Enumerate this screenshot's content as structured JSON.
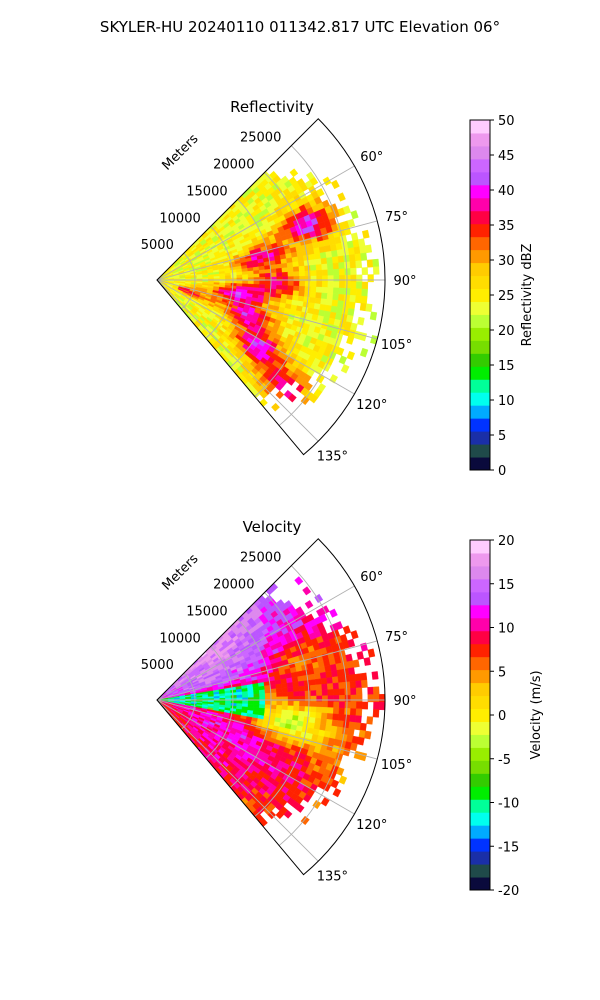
{
  "figure": {
    "suptitle": "SKYLER-HU  20240110  011342.817 UTC Elevation 06°"
  },
  "colors": {
    "reflectivity_scale": [
      "#0a0a3c",
      "#1f4a4a",
      "#1a2fa8",
      "#0033ff",
      "#00aaff",
      "#00ffee",
      "#00ff99",
      "#00ee00",
      "#33cc00",
      "#77dd00",
      "#99ee00",
      "#bbff33",
      "#eeff33",
      "#ffee00",
      "#ffdd00",
      "#ffcc00",
      "#ff9900",
      "#ff6600",
      "#ff2200",
      "#ff0044",
      "#ff00aa",
      "#ff00ff",
      "#bb55ff",
      "#cc66ff",
      "#dd88ee",
      "#ee99ee",
      "#ffccff"
    ],
    "velocity_scale": [
      "#0a0a3c",
      "#1f4a4a",
      "#1a2fa8",
      "#0033ff",
      "#00aaff",
      "#00ffee",
      "#00ff99",
      "#00ee00",
      "#33cc00",
      "#77dd00",
      "#99ee00",
      "#bbff33",
      "#eeff33",
      "#ffee00",
      "#ffdd00",
      "#ffcc00",
      "#ff9900",
      "#ff6600",
      "#ff2200",
      "#ff0044",
      "#ff00aa",
      "#ff00ff",
      "#bb55ff",
      "#cc66ff",
      "#dd88ee",
      "#ee99ee",
      "#ffccff"
    ]
  },
  "chart_data": [
    {
      "type": "heatmap",
      "projection": "polar-sector",
      "title": "Reflectivity",
      "radial_label": "Meters",
      "radial_ticks": [
        "5000",
        "10000",
        "15000",
        "20000",
        "25000"
      ],
      "radial_tick_values": [
        5000,
        10000,
        15000,
        20000,
        25000
      ],
      "r_max": 30000,
      "angle_ticks": [
        "60°",
        "75°",
        "90°",
        "105°",
        "120°",
        "135°"
      ],
      "angle_tick_values": [
        60,
        75,
        90,
        105,
        120,
        135
      ],
      "theta_min": 45,
      "theta_max": 140,
      "grid": true,
      "colorbar": {
        "label": "Reflectivity dBZ",
        "ticks": [
          "0",
          "5",
          "10",
          "15",
          "20",
          "25",
          "30",
          "35",
          "40",
          "45",
          "50"
        ],
        "range": [
          0,
          50
        ]
      },
      "features": [
        {
          "theta": 70,
          "r": 21000,
          "value": 40
        },
        {
          "theta": 78,
          "r": 14000,
          "value": 38
        },
        {
          "theta": 92,
          "r": 16000,
          "value": 36
        },
        {
          "theta": 100,
          "r": 11000,
          "value": 40
        },
        {
          "theta": 112,
          "r": 13000,
          "value": 38
        },
        {
          "theta": 124,
          "r": 16000,
          "value": 40
        },
        {
          "theta": 130,
          "r": 22000,
          "value": 37
        },
        {
          "theta": 110,
          "r": 4000,
          "value": 36
        }
      ]
    },
    {
      "type": "heatmap",
      "projection": "polar-sector",
      "title": "Velocity",
      "radial_label": "Meters",
      "radial_ticks": [
        "5000",
        "10000",
        "15000",
        "20000",
        "25000"
      ],
      "radial_tick_values": [
        5000,
        10000,
        15000,
        20000,
        25000
      ],
      "r_max": 30000,
      "angle_ticks": [
        "60°",
        "75°",
        "90°",
        "105°",
        "120°",
        "135°"
      ],
      "angle_tick_values": [
        60,
        75,
        90,
        105,
        120,
        135
      ],
      "theta_min": 45,
      "theta_max": 140,
      "grid": true,
      "colorbar": {
        "label": "Velocity (m/s)",
        "ticks": [
          "20",
          "15",
          "10",
          "5",
          "0",
          "-5",
          "-10",
          "-15",
          "-20"
        ],
        "range": [
          -20,
          20
        ]
      },
      "features": [
        {
          "theta": 60,
          "r": 22000,
          "value": 12
        },
        {
          "theta": 75,
          "r": 20000,
          "value": 2
        },
        {
          "theta": 90,
          "r": 10000,
          "value": -14
        },
        {
          "theta": 100,
          "r": 18000,
          "value": -12
        },
        {
          "theta": 118,
          "r": 17000,
          "value": 12
        },
        {
          "theta": 130,
          "r": 23000,
          "value": 10
        }
      ]
    }
  ]
}
